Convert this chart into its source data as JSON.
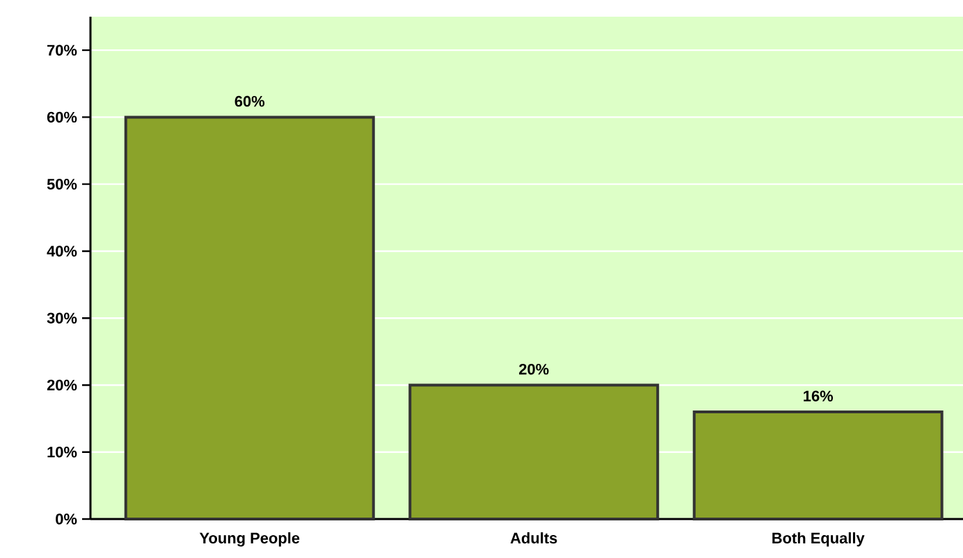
{
  "chart_data": {
    "type": "bar",
    "categories": [
      "Young People",
      "Adults",
      "Both Equally"
    ],
    "values": [
      60,
      20,
      16
    ],
    "value_labels": [
      "60%",
      "20%",
      "16%"
    ],
    "color": "#8ba32a",
    "ylim": [
      0,
      75
    ],
    "yticks": [
      {
        "value": 0,
        "label": "0%"
      },
      {
        "value": 10,
        "label": "10%"
      },
      {
        "value": 20,
        "label": "20%"
      },
      {
        "value": 30,
        "label": "30%"
      },
      {
        "value": 40,
        "label": "40%"
      },
      {
        "value": 50,
        "label": "50%"
      },
      {
        "value": 60,
        "label": "60%"
      },
      {
        "value": 70,
        "label": "70%"
      }
    ],
    "grid": "y"
  }
}
